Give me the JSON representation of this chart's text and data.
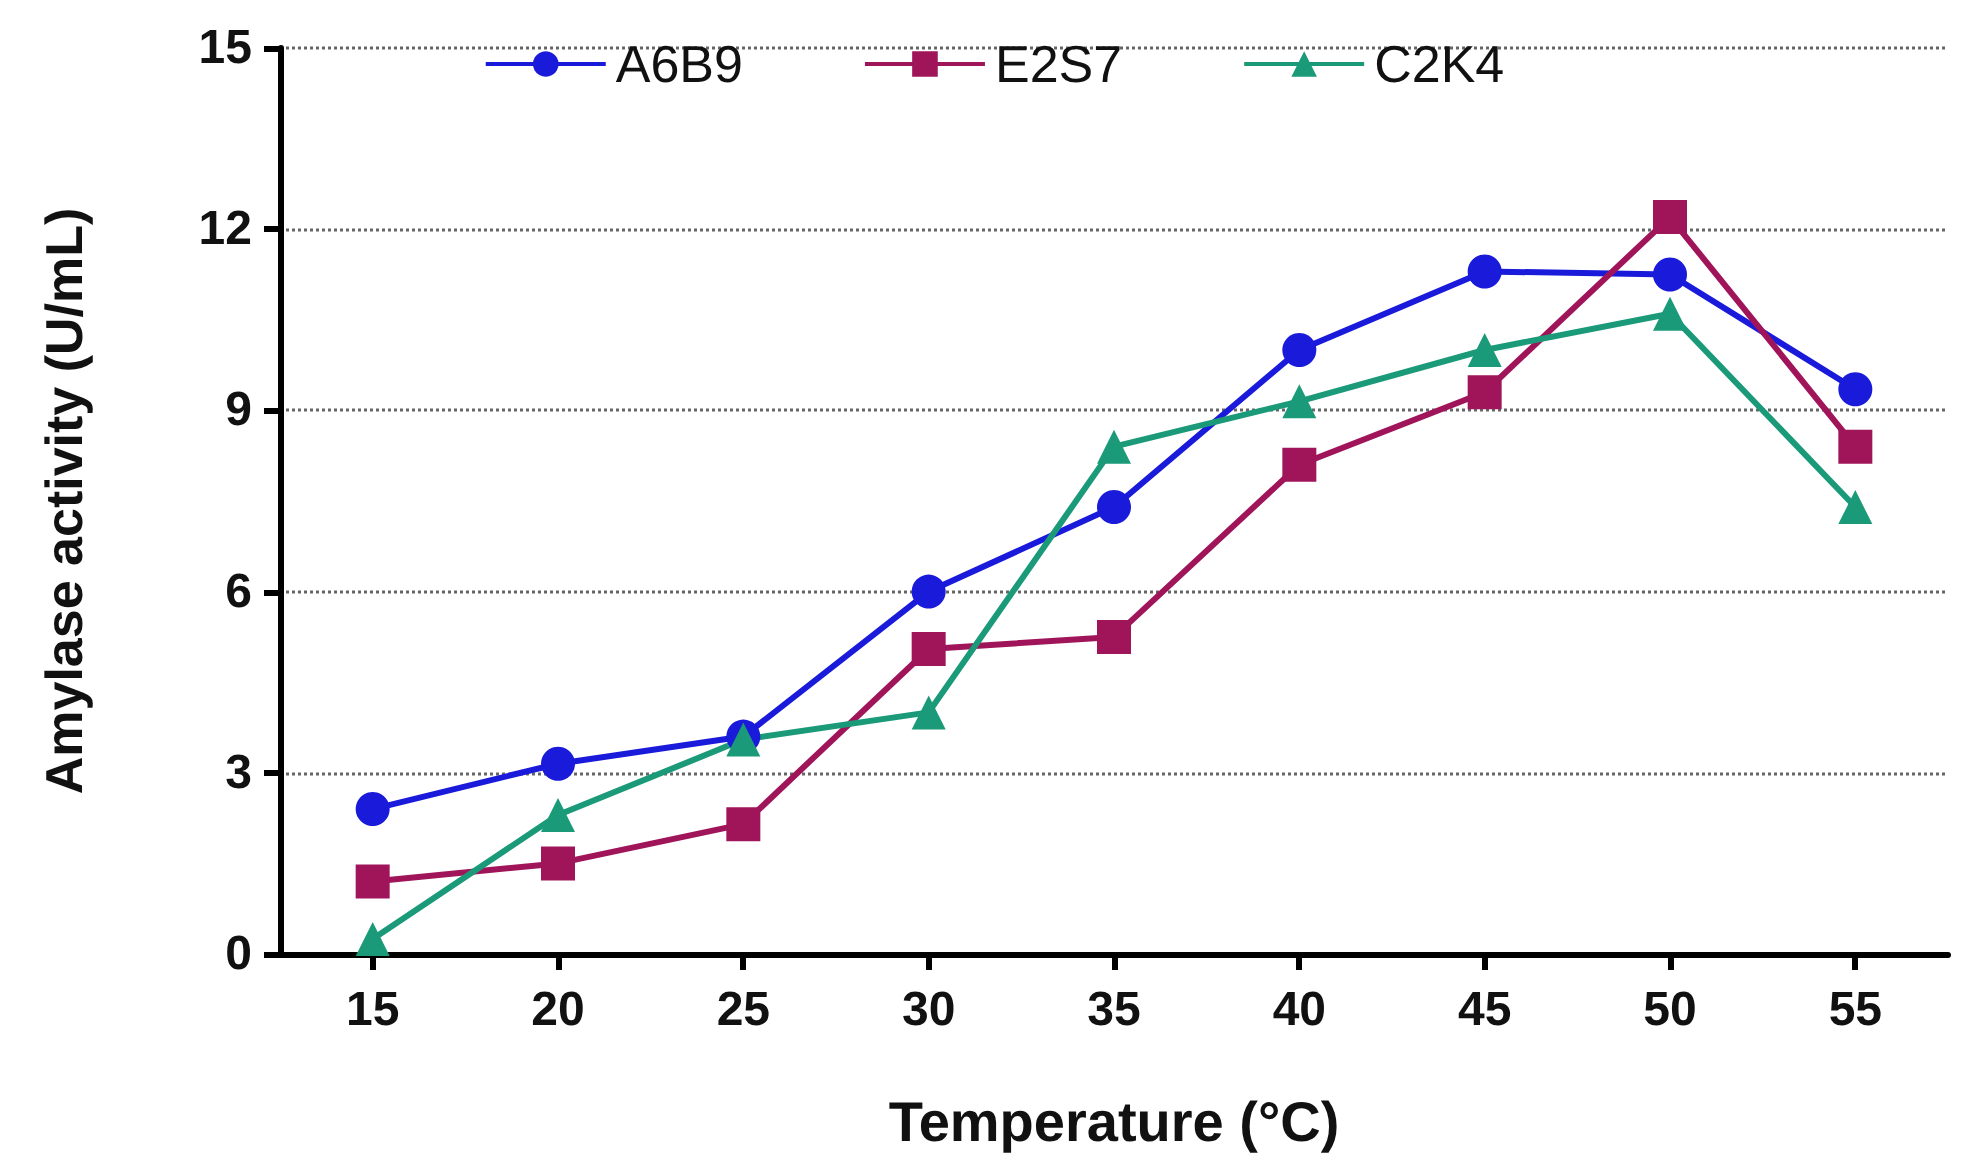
{
  "chart_data": {
    "type": "line",
    "xlabel": "Temperature (°C)",
    "ylabel": "Amylase activity (U/mL)",
    "categories": [
      "15",
      "20",
      "25",
      "30",
      "35",
      "40",
      "45",
      "50",
      "55"
    ],
    "series": [
      {
        "name": "A6B9",
        "color": "#1a1adb",
        "marker": "circle",
        "values": [
          2.4,
          3.15,
          3.6,
          6.0,
          7.4,
          10.0,
          11.3,
          11.25,
          9.35
        ]
      },
      {
        "name": "E2S7",
        "color": "#a0155a",
        "marker": "square",
        "values": [
          1.2,
          1.5,
          2.15,
          5.05,
          5.25,
          8.1,
          9.3,
          12.2,
          8.4
        ]
      },
      {
        "name": "C2K4",
        "color": "#1a9a78",
        "marker": "triangle",
        "values": [
          0.25,
          2.3,
          3.55,
          4.0,
          8.4,
          9.15,
          10.0,
          10.6,
          7.4
        ]
      }
    ],
    "ylim": [
      0,
      15
    ],
    "yticks": [
      0,
      3,
      6,
      9,
      12,
      15
    ],
    "grid": "y",
    "legend": "top",
    "line_style": "solid"
  }
}
